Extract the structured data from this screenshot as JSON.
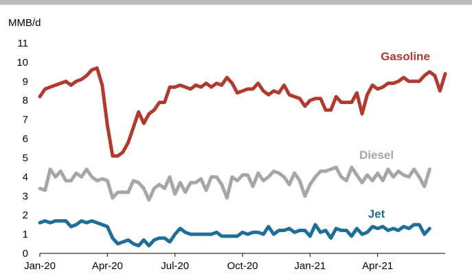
{
  "chart_data": {
    "type": "line",
    "ylabel": "MMB/d",
    "ylim": [
      0,
      11
    ],
    "yticks": [
      0,
      1,
      2,
      3,
      4,
      5,
      6,
      7,
      8,
      9,
      10,
      11
    ],
    "x_tick_labels": [
      "Jan-20",
      "Apr-20",
      "Jul-20",
      "Oct-20",
      "Jan-21",
      "Apr-21"
    ],
    "x_tick_weeks": [
      0,
      13,
      26,
      39,
      52,
      65
    ],
    "grid": false,
    "legend": "inline labels",
    "series": [
      {
        "name": "Gasoline",
        "color": "#b03a2e",
        "values": [
          8.2,
          8.6,
          8.7,
          8.8,
          8.9,
          9.0,
          8.8,
          9.0,
          9.1,
          9.3,
          9.6,
          9.7,
          8.8,
          6.7,
          5.1,
          5.1,
          5.3,
          5.8,
          6.6,
          7.4,
          6.8,
          7.3,
          7.5,
          7.9,
          7.9,
          8.7,
          8.7,
          8.8,
          8.7,
          8.6,
          8.8,
          8.7,
          8.9,
          8.7,
          8.9,
          8.8,
          9.2,
          8.9,
          8.4,
          8.5,
          8.6,
          8.6,
          8.9,
          8.5,
          8.3,
          8.5,
          8.4,
          8.8,
          8.3,
          8.2,
          8.1,
          7.7,
          8.0,
          8.1,
          8.1,
          7.5,
          7.5,
          8.2,
          7.9,
          7.9,
          7.9,
          8.4,
          7.3,
          8.3,
          8.8,
          8.6,
          8.7,
          8.9,
          8.9,
          9.0,
          9.2,
          9.0,
          9.0,
          9.0,
          9.3,
          9.5,
          9.3,
          8.5,
          9.4
        ]
      },
      {
        "name": "Diesel",
        "color": "#a6a6a6",
        "values": [
          3.4,
          3.3,
          4.4,
          4.0,
          4.3,
          3.8,
          3.8,
          4.2,
          4.0,
          4.4,
          4.0,
          3.8,
          3.9,
          3.8,
          2.9,
          3.2,
          3.2,
          3.2,
          3.8,
          3.7,
          3.4,
          2.8,
          3.4,
          3.6,
          3.4,
          4.0,
          3.1,
          3.7,
          3.2,
          3.7,
          3.7,
          3.9,
          3.3,
          4.0,
          4.0,
          3.6,
          2.9,
          4.0,
          3.8,
          4.1,
          4.1,
          3.5,
          4.2,
          3.8,
          4.0,
          4.3,
          4.2,
          4.0,
          3.6,
          4.2,
          3.8,
          3.0,
          3.6,
          4.0,
          4.3,
          4.3,
          4.4,
          4.5,
          4.0,
          3.8,
          4.5,
          4.1,
          3.7,
          4.1,
          3.8,
          4.2,
          3.8,
          4.4,
          4.0,
          4.3,
          4.1,
          4.0,
          4.4,
          4.0,
          3.5,
          4.4
        ]
      },
      {
        "name": "Jet",
        "color": "#1f6e96",
        "values": [
          1.6,
          1.7,
          1.6,
          1.7,
          1.7,
          1.7,
          1.4,
          1.5,
          1.7,
          1.6,
          1.7,
          1.6,
          1.5,
          1.4,
          0.8,
          0.5,
          0.6,
          0.7,
          0.5,
          0.4,
          0.7,
          0.4,
          0.7,
          0.8,
          0.8,
          0.6,
          1.0,
          1.3,
          1.1,
          1.0,
          1.0,
          1.0,
          1.0,
          1.0,
          1.1,
          0.9,
          0.9,
          0.9,
          0.9,
          1.1,
          1.0,
          1.1,
          1.1,
          1.0,
          1.4,
          1.0,
          1.2,
          1.2,
          1.3,
          1.1,
          1.2,
          1.2,
          0.9,
          1.5,
          1.1,
          1.2,
          0.8,
          1.3,
          1.2,
          1.2,
          0.9,
          1.3,
          1.0,
          1.1,
          1.4,
          1.3,
          1.4,
          1.2,
          1.3,
          1.2,
          1.4,
          1.3,
          1.5,
          1.5,
          1.0,
          1.3
        ]
      }
    ]
  }
}
